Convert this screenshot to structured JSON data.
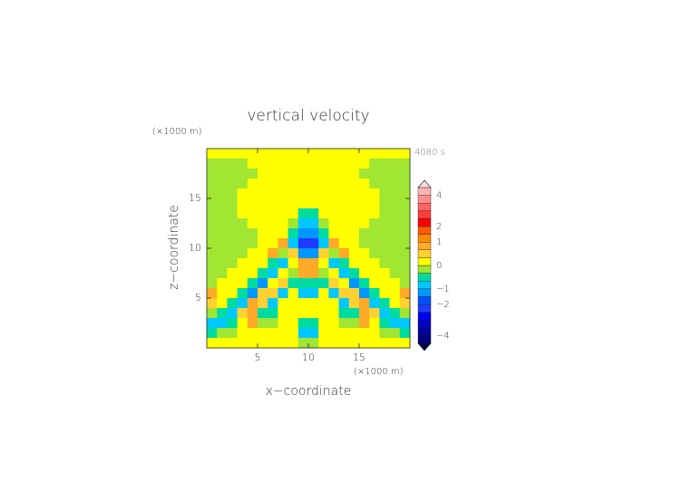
{
  "chart_data": {
    "type": "contour",
    "title": "vertical velocity",
    "time_label": "4080 s",
    "x_label": "x−coordinate",
    "y_label": "z−coordinate",
    "x_unit": "(×1000 m)",
    "y_unit": "(×1000 m)",
    "xlim": [
      0,
      20
    ],
    "ylim": [
      0,
      20
    ],
    "xticks": [
      5,
      10,
      15
    ],
    "yticks": [
      5,
      10,
      15
    ],
    "x": [
      0.5,
      1.5,
      2.5,
      3.5,
      4.5,
      5.5,
      6.5,
      7.5,
      8.5,
      9.5,
      10.5,
      11.5,
      12.5,
      13.5,
      14.5,
      15.5,
      16.5,
      17.5,
      18.5,
      19.5
    ],
    "y": [
      19.5,
      18.5,
      17.5,
      16.5,
      15.5,
      14.5,
      13.5,
      12.5,
      11.5,
      10.5,
      9.5,
      8.5,
      7.5,
      6.5,
      5.5,
      4.5,
      3.5,
      2.5,
      1.5,
      0.5
    ],
    "z": [
      [
        0.1,
        0.1,
        0.1,
        0.1,
        0.1,
        0.1,
        0.1,
        0.1,
        0.1,
        0.1,
        0.1,
        0.1,
        0.1,
        0.1,
        0.1,
        0.1,
        0.1,
        0.1,
        0.1,
        0.1
      ],
      [
        -0.1,
        -0.1,
        -0.1,
        -0.1,
        0.1,
        0.1,
        0.1,
        0.1,
        0.1,
        0.1,
        0.1,
        0.1,
        0.1,
        0.1,
        0.1,
        0.1,
        -0.1,
        -0.1,
        -0.1,
        -0.1
      ],
      [
        -0.1,
        -0.1,
        -0.1,
        -0.1,
        -0.1,
        0.1,
        0.1,
        0.1,
        0.1,
        0.1,
        0.1,
        0.1,
        0.1,
        0.1,
        0.1,
        -0.1,
        -0.1,
        -0.1,
        -0.1,
        -0.1
      ],
      [
        -0.1,
        -0.1,
        -0.1,
        -0.1,
        0.1,
        0.1,
        0.1,
        0.1,
        0.1,
        0.1,
        0.1,
        0.1,
        0.1,
        0.1,
        0.1,
        0.1,
        -0.1,
        -0.1,
        -0.1,
        -0.1
      ],
      [
        -0.1,
        -0.1,
        -0.1,
        0.1,
        0.1,
        0.1,
        0.1,
        0.1,
        0.1,
        0.1,
        0.1,
        0.1,
        0.1,
        0.1,
        0.1,
        0.1,
        0.1,
        -0.1,
        -0.1,
        -0.1
      ],
      [
        -0.1,
        -0.1,
        -0.1,
        0.1,
        0.1,
        0.1,
        0.1,
        0.1,
        0.1,
        0.1,
        0.1,
        0.1,
        0.1,
        0.1,
        0.1,
        0.1,
        0.1,
        -0.1,
        -0.1,
        -0.1
      ],
      [
        -0.1,
        -0.1,
        -0.1,
        0.1,
        0.1,
        0.1,
        0.1,
        0.1,
        0.1,
        -0.3,
        -0.3,
        0.1,
        0.1,
        0.1,
        0.1,
        0.1,
        0.1,
        -0.1,
        -0.1,
        -0.1
      ],
      [
        -0.1,
        -0.1,
        -0.1,
        -0.1,
        0.1,
        0.1,
        0.1,
        0.1,
        -0.1,
        -0.7,
        -0.7,
        -0.1,
        0.1,
        0.1,
        0.1,
        0.1,
        -0.1,
        -0.1,
        -0.1,
        -0.1
      ],
      [
        -0.1,
        -0.1,
        -0.1,
        -0.1,
        -0.1,
        0.1,
        0.1,
        0.1,
        -0.3,
        -1.2,
        -1.2,
        -0.3,
        0.1,
        0.1,
        0.1,
        -0.1,
        -0.1,
        -0.1,
        -0.1,
        -0.1
      ],
      [
        -0.1,
        -0.1,
        -0.1,
        -0.1,
        -0.1,
        0.1,
        0.1,
        0.7,
        -0.7,
        -2.2,
        -2.2,
        -0.7,
        0.7,
        0.1,
        0.1,
        -0.1,
        -0.1,
        -0.1,
        -0.1,
        -0.1
      ],
      [
        -0.1,
        -0.1,
        -0.1,
        -0.1,
        0.1,
        0.1,
        0.7,
        -0.1,
        0.3,
        -1.5,
        -1.5,
        0.3,
        -0.1,
        0.7,
        0.1,
        0.1,
        -0.1,
        -0.1,
        -0.1,
        -0.1
      ],
      [
        -0.1,
        -0.1,
        -0.1,
        0.1,
        0.1,
        0.1,
        -0.3,
        -0.7,
        0.1,
        0.7,
        0.7,
        0.1,
        -0.7,
        -0.3,
        0.1,
        0.1,
        0.1,
        -0.1,
        -0.1,
        -0.1
      ],
      [
        -0.1,
        -0.1,
        0.1,
        0.1,
        0.1,
        -0.3,
        -0.7,
        0.1,
        -0.1,
        0.7,
        0.7,
        -0.1,
        0.1,
        -0.7,
        -0.3,
        0.1,
        0.1,
        0.1,
        -0.1,
        -0.1
      ],
      [
        -0.1,
        0.1,
        0.1,
        0.1,
        -0.3,
        -1.2,
        0.1,
        0.3,
        -0.3,
        -0.3,
        -0.3,
        -0.3,
        0.3,
        0.1,
        -1.2,
        -0.3,
        0.1,
        0.1,
        0.1,
        -0.1
      ],
      [
        0.7,
        0.1,
        0.1,
        -0.3,
        -1.2,
        0.3,
        0.3,
        -0.7,
        0.1,
        -0.7,
        -0.7,
        0.1,
        -0.7,
        0.3,
        0.3,
        -1.2,
        -0.3,
        0.1,
        0.1,
        0.7
      ],
      [
        0.3,
        0.1,
        -0.3,
        -0.7,
        0.7,
        0.3,
        -0.7,
        0.1,
        0.1,
        0.1,
        0.1,
        0.1,
        0.1,
        -0.7,
        0.3,
        0.7,
        -0.7,
        -0.3,
        0.1,
        0.3
      ],
      [
        -0.1,
        -0.3,
        -0.7,
        0.3,
        0.7,
        -0.3,
        -0.3,
        0.1,
        0.1,
        0.1,
        0.1,
        0.1,
        0.1,
        -0.3,
        -0.3,
        0.7,
        0.3,
        -0.7,
        -0.3,
        -0.1
      ],
      [
        -0.7,
        -0.7,
        -0.3,
        0.1,
        0.7,
        -0.1,
        -0.1,
        0.1,
        0.1,
        -0.3,
        -0.3,
        0.1,
        0.1,
        -0.1,
        -0.1,
        0.7,
        0.1,
        -0.3,
        -0.7,
        -0.7
      ],
      [
        -0.3,
        -0.1,
        -0.1,
        0.1,
        0.1,
        0.1,
        0.1,
        0.1,
        0.1,
        -0.7,
        -0.7,
        0.1,
        0.1,
        0.1,
        0.1,
        0.1,
        0.1,
        -0.1,
        -0.1,
        -0.3
      ],
      [
        0.1,
        0.1,
        0.1,
        0.1,
        0.1,
        0.1,
        0.1,
        0.1,
        0.1,
        -0.1,
        -0.1,
        0.1,
        0.1,
        0.1,
        0.1,
        0.1,
        0.1,
        0.1,
        0.1,
        0.1
      ]
    ],
    "levels": [
      -4.5,
      -4,
      -3.5,
      -3,
      -2.5,
      -2,
      -1.5,
      -1,
      -0.5,
      -0.2,
      0,
      0.2,
      0.5,
      1,
      1.5,
      2,
      2.5,
      3,
      3.5,
      4,
      4.5
    ],
    "colors": [
      "#000046",
      "#000078",
      "#0000a0",
      "#0000c8",
      "#0000f0",
      "#1e3cff",
      "#0050ff",
      "#0096ff",
      "#00c8ff",
      "#00dca0",
      "#a0e632",
      "#ffff00",
      "#ffd232",
      "#ffaa28",
      "#ff8c00",
      "#ff5a00",
      "#ff0000",
      "#ff3c3c",
      "#ff6464",
      "#ff8c8c",
      "#ffb4b4",
      "#ffdcdc"
    ],
    "colorbar_ticks": [
      4,
      2,
      1,
      0,
      {
        "value": -1,
        "label": "−1"
      },
      {
        "value": -2,
        "label": "−2"
      },
      {
        "value": -4,
        "label": "−4"
      }
    ]
  }
}
